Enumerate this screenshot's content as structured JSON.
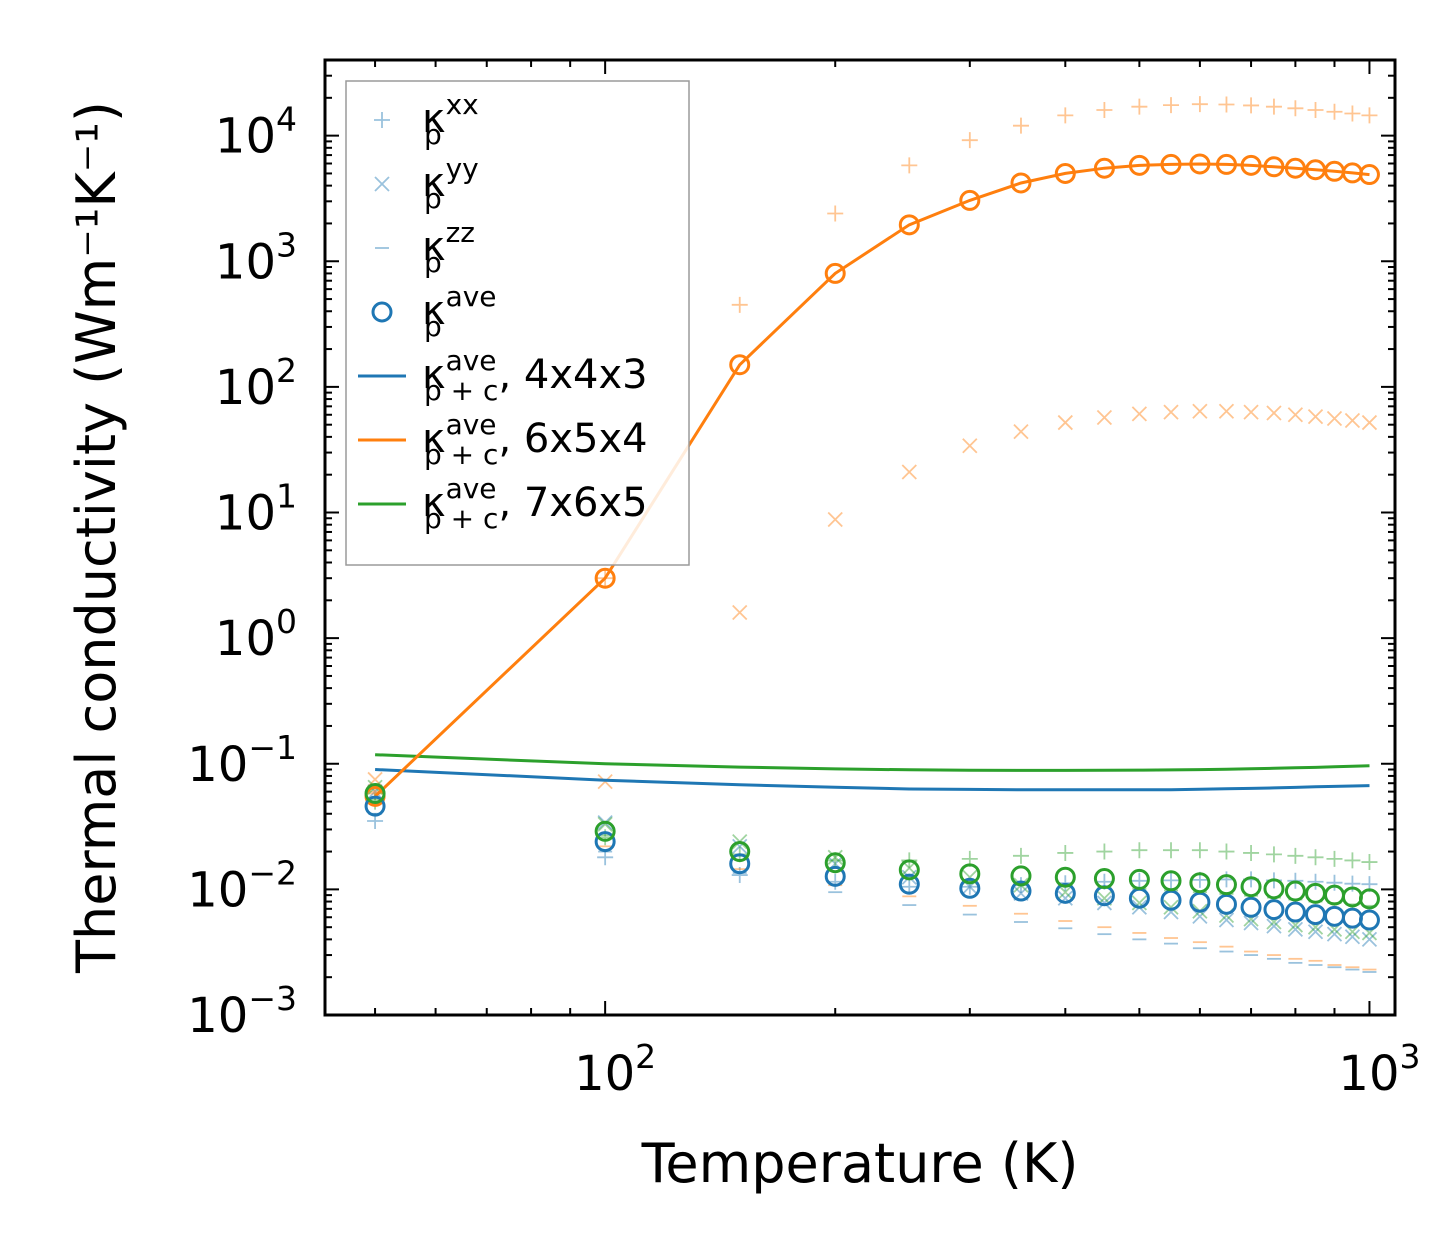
{
  "chart_data": {
    "type": "scatter",
    "title": "",
    "xlabel": "Temperature (K)",
    "ylabel": "Thermal conductivity (Wm⁻¹K⁻¹)",
    "xscale": "log",
    "yscale": "log",
    "xlim": [
      43,
      1080
    ],
    "ylim": [
      0.001,
      40000
    ],
    "grid": false,
    "legend_position": "top-left",
    "x_ticks": [
      {
        "base": "10",
        "exp": "2",
        "value": 100
      },
      {
        "base": "10",
        "exp": "3",
        "value": 1000
      }
    ],
    "y_ticks": [
      {
        "base": "10",
        "exp": "−3",
        "value": 0.001
      },
      {
        "base": "10",
        "exp": "−2",
        "value": 0.01
      },
      {
        "base": "10",
        "exp": "−1",
        "value": 0.1
      },
      {
        "base": "10",
        "exp": "0",
        "value": 1
      },
      {
        "base": "10",
        "exp": "1",
        "value": 10
      },
      {
        "base": "10",
        "exp": "2",
        "value": 100
      },
      {
        "base": "10",
        "exp": "3",
        "value": 1000
      },
      {
        "base": "10",
        "exp": "4",
        "value": 10000
      }
    ],
    "colors": {
      "blue": "#1f77b4",
      "orange": "#ff7f0e",
      "green": "#2ca02c",
      "legend_border": "#9a9a9a"
    },
    "x": [
      50,
      100,
      150,
      200,
      250,
      300,
      350,
      400,
      450,
      500,
      550,
      600,
      650,
      700,
      750,
      800,
      850,
      900,
      950,
      1000
    ],
    "series": [
      {
        "name": "blue_xx",
        "color": "#1f77b4",
        "marker": "plus",
        "alpha": 0.45,
        "values": [
          0.035,
          0.018,
          0.013,
          0.0115,
          0.0105,
          0.0105,
          0.0108,
          0.0112,
          0.0115,
          0.0117,
          0.0118,
          0.0119,
          0.012,
          0.012,
          0.0118,
          0.0117,
          0.0115,
          0.0113,
          0.0111,
          0.011
        ]
      },
      {
        "name": "blue_yy",
        "color": "#1f77b4",
        "marker": "x",
        "alpha": 0.45,
        "values": [
          0.06,
          0.034,
          0.022,
          0.016,
          0.0125,
          0.0105,
          0.0093,
          0.0085,
          0.0078,
          0.0072,
          0.0066,
          0.0061,
          0.0057,
          0.0054,
          0.0051,
          0.0048,
          0.0046,
          0.0044,
          0.0042,
          0.004
        ]
      },
      {
        "name": "blue_zz",
        "color": "#1f77b4",
        "marker": "minus",
        "alpha": 0.45,
        "values": [
          0.04,
          0.02,
          0.0135,
          0.0095,
          0.0075,
          0.0063,
          0.0055,
          0.0049,
          0.0044,
          0.004,
          0.0037,
          0.0034,
          0.0032,
          0.003,
          0.0028,
          0.0026,
          0.0025,
          0.0024,
          0.0023,
          0.0022
        ]
      },
      {
        "name": "blue_ave",
        "color": "#1f77b4",
        "marker": "circle",
        "alpha": 1,
        "values": [
          0.046,
          0.024,
          0.016,
          0.0127,
          0.011,
          0.0102,
          0.0097,
          0.0093,
          0.0089,
          0.0085,
          0.0082,
          0.0079,
          0.0076,
          0.0072,
          0.0069,
          0.0066,
          0.0063,
          0.0061,
          0.0059,
          0.0057
        ]
      },
      {
        "name": "orange_xx",
        "color": "#ff7f0e",
        "marker": "plus",
        "alpha": 0.45,
        "values": [
          0.06,
          3.0,
          450,
          2400,
          5800,
          9200,
          12000,
          14500,
          16000,
          17000,
          17500,
          17800,
          17700,
          17400,
          17000,
          16500,
          16000,
          15500,
          15000,
          14500
        ]
      },
      {
        "name": "orange_yy",
        "color": "#ff7f0e",
        "marker": "x",
        "alpha": 0.45,
        "values": [
          0.075,
          0.072,
          1.6,
          8.8,
          21,
          34,
          44,
          52,
          57,
          61,
          63,
          64,
          64,
          63,
          62,
          60,
          58,
          56,
          54,
          52
        ]
      },
      {
        "name": "orange_zz",
        "color": "#ff7f0e",
        "marker": "minus",
        "alpha": 0.45,
        "values": [
          0.058,
          0.022,
          0.0145,
          0.0108,
          0.0088,
          0.0074,
          0.0064,
          0.0056,
          0.005,
          0.0045,
          0.0041,
          0.0038,
          0.0035,
          0.0032,
          0.003,
          0.0028,
          0.0027,
          0.0025,
          0.0024,
          0.0023
        ]
      },
      {
        "name": "orange_ave",
        "color": "#ff7f0e",
        "marker": "circle",
        "alpha": 1,
        "line": true,
        "values": [
          0.055,
          3.0,
          150,
          800,
          1950,
          3050,
          4200,
          5000,
          5500,
          5800,
          5900,
          5950,
          5900,
          5800,
          5650,
          5500,
          5350,
          5200,
          5050,
          4900
        ]
      },
      {
        "name": "green_xx",
        "color": "#2ca02c",
        "marker": "plus",
        "alpha": 0.45,
        "values": [
          0.05,
          0.026,
          0.019,
          0.017,
          0.017,
          0.0175,
          0.0185,
          0.0195,
          0.02,
          0.0205,
          0.0205,
          0.0205,
          0.02,
          0.0195,
          0.019,
          0.0185,
          0.018,
          0.0175,
          0.017,
          0.0165
        ]
      },
      {
        "name": "green_yy",
        "color": "#2ca02c",
        "marker": "x",
        "alpha": 0.45,
        "values": [
          0.065,
          0.033,
          0.024,
          0.018,
          0.0148,
          0.0125,
          0.0108,
          0.0095,
          0.0085,
          0.0078,
          0.0072,
          0.0067,
          0.0062,
          0.0058,
          0.0055,
          0.0052,
          0.005,
          0.0048,
          0.0046,
          0.0045
        ]
      },
      {
        "name": "green_zz",
        "color": "#2ca02c",
        "marker": "minus",
        "alpha": 0.45,
        "values": [
          0.052,
          0.027,
          0.0185,
          0.0148,
          0.0128,
          0.0118,
          0.0112,
          0.0108,
          0.0104,
          0.0101,
          0.0098,
          0.0095,
          0.0092,
          0.0089,
          0.0086,
          0.0083,
          0.008,
          0.0078,
          0.0076,
          0.0074
        ]
      },
      {
        "name": "green_ave",
        "color": "#2ca02c",
        "marker": "circle",
        "alpha": 1,
        "values": [
          0.058,
          0.029,
          0.02,
          0.0163,
          0.0143,
          0.0133,
          0.0128,
          0.0125,
          0.0122,
          0.012,
          0.0117,
          0.0113,
          0.0109,
          0.0105,
          0.0101,
          0.0097,
          0.0093,
          0.009,
          0.0087,
          0.0084
        ]
      },
      {
        "name": "blue_total",
        "color": "#1f77b4",
        "marker": "none",
        "alpha": 1,
        "line": true,
        "values": [
          0.09,
          0.074,
          0.068,
          0.065,
          0.063,
          0.0625,
          0.062,
          0.062,
          0.062,
          0.062,
          0.0622,
          0.0627,
          0.0632,
          0.0637,
          0.0642,
          0.0648,
          0.0655,
          0.066,
          0.0665,
          0.067
        ]
      },
      {
        "name": "green_total",
        "color": "#2ca02c",
        "marker": "none",
        "alpha": 1,
        "line": true,
        "values": [
          0.118,
          0.1,
          0.094,
          0.091,
          0.0895,
          0.0888,
          0.0885,
          0.0885,
          0.0887,
          0.089,
          0.0894,
          0.0899,
          0.0905,
          0.0912,
          0.092,
          0.0928,
          0.0936,
          0.0945,
          0.0955,
          0.0965
        ]
      }
    ],
    "legend": [
      {
        "symbol": "κ",
        "sub": "p",
        "sup": "xx",
        "suffix": "",
        "marker": "plus",
        "color": "#1f77b4",
        "alpha": 0.45
      },
      {
        "symbol": "κ",
        "sub": "p",
        "sup": "yy",
        "suffix": "",
        "marker": "x",
        "color": "#1f77b4",
        "alpha": 0.45
      },
      {
        "symbol": "κ",
        "sub": "p",
        "sup": "zz",
        "suffix": "",
        "marker": "minus",
        "color": "#1f77b4",
        "alpha": 0.45
      },
      {
        "symbol": "κ",
        "sub": "p",
        "sup": "ave",
        "suffix": "",
        "marker": "circle",
        "color": "#1f77b4",
        "alpha": 1
      },
      {
        "symbol": "κ",
        "sub": "p + c",
        "sup": "ave",
        "suffix": ", 4x4x3",
        "marker": "line",
        "color": "#1f77b4",
        "alpha": 1
      },
      {
        "symbol": "κ",
        "sub": "p + c",
        "sup": "ave",
        "suffix": ", 6x5x4",
        "marker": "line",
        "color": "#ff7f0e",
        "alpha": 1
      },
      {
        "symbol": "κ",
        "sub": "p + c",
        "sup": "ave",
        "suffix": ", 7x6x5",
        "marker": "line",
        "color": "#2ca02c",
        "alpha": 1
      }
    ]
  }
}
